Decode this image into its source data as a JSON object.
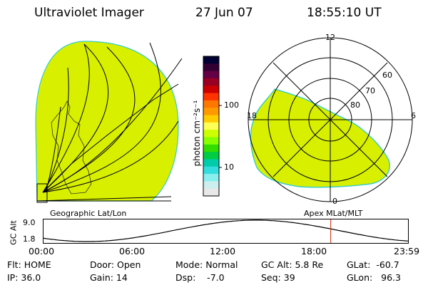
{
  "header": {
    "title": "Ultraviolet Imager",
    "date": "27 Jun 07",
    "time": "18:55:10 UT"
  },
  "panels": {
    "left_label": "Geographic Lat/Lon",
    "right_label": "Apex MLat/MLT"
  },
  "colorbar": {
    "unit_label": "photon cm⁻²s⁻¹",
    "ticks": [
      "100",
      "10"
    ],
    "colors": [
      "#000033",
      "#330033",
      "#660044",
      "#990022",
      "#cc0000",
      "#ff3300",
      "#ff7700",
      "#ff9900",
      "#ffcc00",
      "#ffff55",
      "#ccff00",
      "#88ff00",
      "#33dd00",
      "#00cc44",
      "#00ccaa",
      "#33dddd",
      "#88eeee",
      "#cceeee",
      "#e8e8e8"
    ]
  },
  "polar_plot": {
    "mlt_labels": [
      "12",
      "18",
      "6",
      "0"
    ],
    "mlat_labels": [
      "60",
      "70",
      "80"
    ]
  },
  "altitude_plot": {
    "ylabel": "GC Alt",
    "y_ticks": [
      "9.0",
      "1.8"
    ],
    "x_ticks": [
      "00:00",
      "06:00",
      "12:00",
      "18:00",
      "23:59"
    ],
    "marker_hour": 18.92
  },
  "info": {
    "flt": "Flt: HOME",
    "ip": "IP: 36.0",
    "door": "Door: Open",
    "gain": "Gain: 14",
    "mode": "Mode: Normal",
    "dsp": "Dsp:    -7.0",
    "gcalt": "GC Alt: 5.8 Re",
    "seq": "Seq: 39",
    "glat": "GLat:  -60.7",
    "glon": "GLon:   96.3"
  },
  "colors": {
    "fill": "#d8f000",
    "edge": "#33cccc",
    "marker": "#cc2200"
  }
}
